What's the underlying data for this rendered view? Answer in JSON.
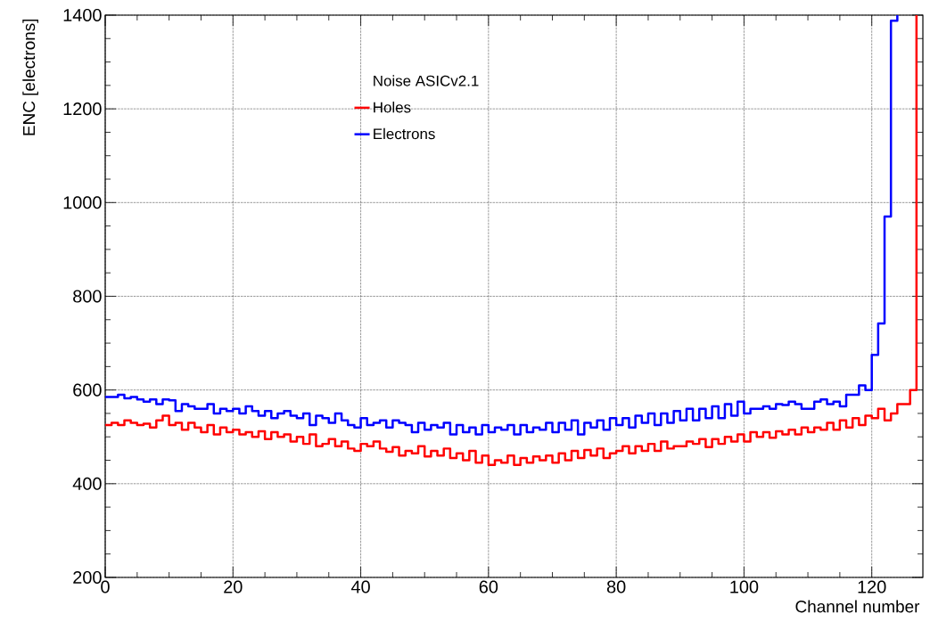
{
  "chart_data": {
    "type": "step",
    "xlabel": "Channel number",
    "ylabel": "ENC [electrons]",
    "legend_title": "Noise ASICv2.1",
    "x": [
      0,
      1,
      2,
      3,
      4,
      5,
      6,
      7,
      8,
      9,
      10,
      11,
      12,
      13,
      14,
      15,
      16,
      17,
      18,
      19,
      20,
      21,
      22,
      23,
      24,
      25,
      26,
      27,
      28,
      29,
      30,
      31,
      32,
      33,
      34,
      35,
      36,
      37,
      38,
      39,
      40,
      41,
      42,
      43,
      44,
      45,
      46,
      47,
      48,
      49,
      50,
      51,
      52,
      53,
      54,
      55,
      56,
      57,
      58,
      59,
      60,
      61,
      62,
      63,
      64,
      65,
      66,
      67,
      68,
      69,
      70,
      71,
      72,
      73,
      74,
      75,
      76,
      77,
      78,
      79,
      80,
      81,
      82,
      83,
      84,
      85,
      86,
      87,
      88,
      89,
      90,
      91,
      92,
      93,
      94,
      95,
      96,
      97,
      98,
      99,
      100,
      101,
      102,
      103,
      104,
      105,
      106,
      107,
      108,
      109,
      110,
      111,
      112,
      113,
      114,
      115,
      116,
      117,
      118,
      119,
      120,
      121,
      122,
      123,
      124,
      125,
      126,
      127
    ],
    "series": [
      {
        "name": "Holes",
        "color": "#ff0000",
        "values": [
          525,
          530,
          525,
          535,
          530,
          525,
          528,
          520,
          535,
          545,
          525,
          530,
          515,
          530,
          520,
          510,
          525,
          505,
          520,
          510,
          515,
          505,
          510,
          500,
          512,
          495,
          510,
          500,
          505,
          490,
          500,
          485,
          505,
          480,
          485,
          495,
          480,
          490,
          475,
          470,
          485,
          480,
          490,
          475,
          468,
          478,
          460,
          470,
          465,
          480,
          458,
          470,
          460,
          475,
          455,
          465,
          450,
          470,
          445,
          460,
          440,
          450,
          445,
          460,
          440,
          455,
          445,
          458,
          450,
          460,
          445,
          465,
          450,
          470,
          455,
          472,
          460,
          475,
          455,
          465,
          470,
          480,
          465,
          480,
          470,
          485,
          470,
          490,
          475,
          480,
          480,
          490,
          485,
          495,
          478,
          495,
          485,
          500,
          490,
          505,
          490,
          510,
          500,
          510,
          498,
          512,
          505,
          515,
          505,
          520,
          510,
          520,
          515,
          530,
          515,
          535,
          520,
          540,
          525,
          545,
          540,
          560,
          535,
          550,
          570,
          570,
          600,
          1400
        ]
      },
      {
        "name": "Electrons",
        "color": "#0000ff",
        "values": [
          585,
          585,
          590,
          582,
          585,
          580,
          575,
          580,
          570,
          580,
          578,
          555,
          570,
          565,
          560,
          560,
          570,
          550,
          560,
          555,
          560,
          550,
          565,
          555,
          545,
          555,
          540,
          550,
          555,
          545,
          540,
          550,
          525,
          545,
          540,
          530,
          550,
          535,
          525,
          520,
          540,
          525,
          530,
          535,
          520,
          535,
          530,
          525,
          510,
          530,
          515,
          525,
          520,
          530,
          505,
          525,
          510,
          520,
          505,
          525,
          510,
          520,
          515,
          525,
          505,
          525,
          510,
          520,
          515,
          530,
          510,
          530,
          515,
          535,
          505,
          530,
          520,
          535,
          515,
          540,
          525,
          540,
          520,
          545,
          530,
          550,
          525,
          550,
          530,
          555,
          535,
          560,
          535,
          560,
          540,
          565,
          540,
          570,
          545,
          575,
          550,
          560,
          560,
          565,
          560,
          570,
          568,
          575,
          570,
          560,
          560,
          575,
          580,
          570,
          575,
          565,
          590,
          590,
          610,
          600,
          675,
          742,
          970,
          1388,
          1400,
          null,
          null,
          null
        ]
      }
    ],
    "xlim": [
      0,
      128
    ],
    "ylim": [
      200,
      1400
    ],
    "xticks": [
      0,
      20,
      40,
      60,
      80,
      100,
      120
    ],
    "yticks": [
      200,
      400,
      600,
      800,
      1000,
      1200,
      1400
    ],
    "grid": true,
    "legend": "top left"
  }
}
